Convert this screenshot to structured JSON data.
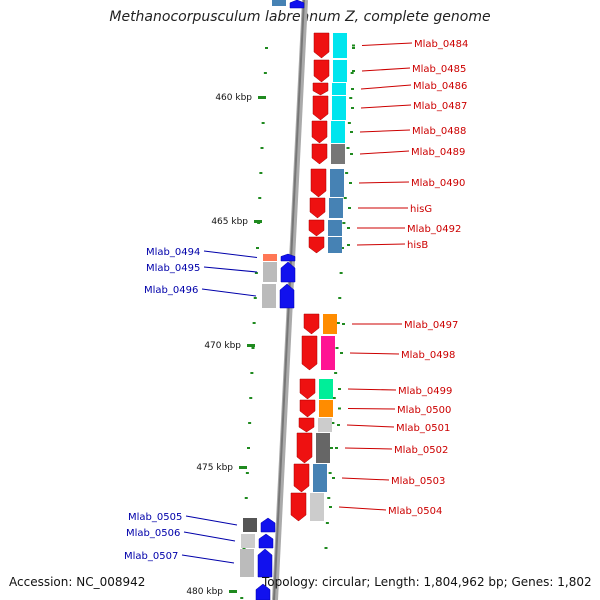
{
  "title": "Methanocorpusculum labreanum Z, complete genome",
  "footer": {
    "accession": "Accession: NC_008942",
    "topology": "Topology: circular; Length: 1,804,962 bp; Genes: 1,802"
  },
  "ruler": [
    "460 kbp",
    "465 kbp",
    "470 kbp",
    "475 kbp",
    "480 kbp"
  ],
  "colors": {
    "forward": "#ee1111",
    "reverse": "#1111ee",
    "backbone": "#888888",
    "tick": "#1f8a1f",
    "label_forward": "#cc0000",
    "label_reverse": "#0000aa"
  },
  "forward_genes": [
    "Mlab_0484",
    "Mlab_0485",
    "Mlab_0486",
    "Mlab_0487",
    "Mlab_0488",
    "Mlab_0489",
    "Mlab_0490",
    "hisG",
    "Mlab_0492",
    "hisB",
    "Mlab_0497",
    "Mlab_0498",
    "Mlab_0499",
    "Mlab_0500",
    "Mlab_0501",
    "Mlab_0502",
    "Mlab_0503",
    "Mlab_0504"
  ],
  "reverse_genes": [
    "Mlab_0494",
    "Mlab_0495",
    "Mlab_0496",
    "Mlab_0505",
    "Mlab_0506",
    "Mlab_0507"
  ]
}
